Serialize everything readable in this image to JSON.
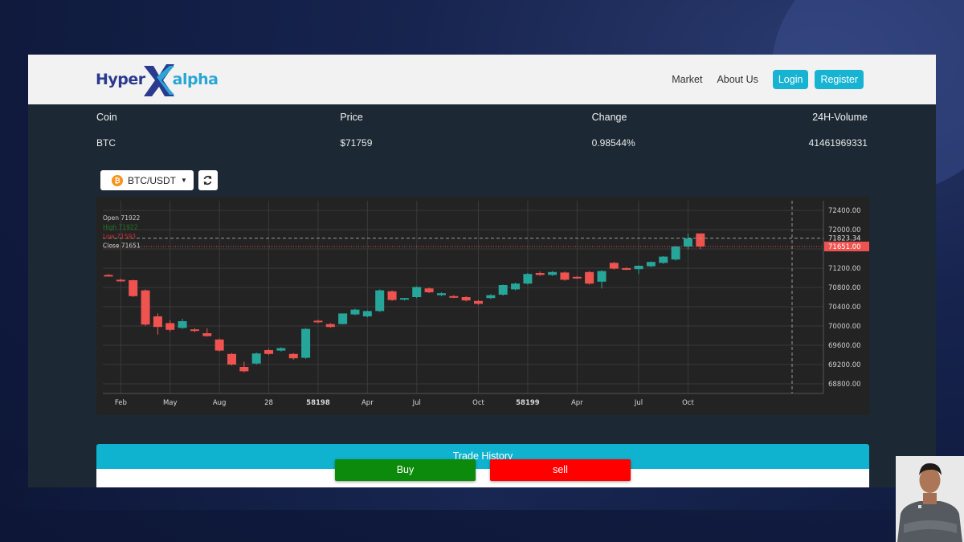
{
  "brand": {
    "logo_left": "Hyper",
    "logo_right": "alpha"
  },
  "nav": {
    "market": "Market",
    "about": "About Us",
    "login": "Login",
    "register": "Register"
  },
  "ticker": {
    "headers": {
      "coin": "Coin",
      "price": "Price",
      "change": "Change",
      "volume": "24H-Volume"
    },
    "row": {
      "coin": "BTC",
      "price": "$71759",
      "change": "0.98544%",
      "volume": "41461969331"
    }
  },
  "toolbar": {
    "pair_label": "BTC/USDT",
    "coin_icon": "bitcoin-icon",
    "refresh_icon": "refresh-icon"
  },
  "colors": {
    "up": "#26a69a",
    "down": "#ef5350",
    "accent": "#17b3d2",
    "buy": "#0b8a0b",
    "sell": "#ff0000"
  },
  "chart_data": {
    "type": "candlestick",
    "legend": {
      "open": "Open 71922",
      "high": "High 71922",
      "low": "Low 71593",
      "close": "Close 71651"
    },
    "ylim": [
      68600,
      72600
    ],
    "y_ticks": [
      "72400.00",
      "72000.00",
      "71600.00",
      "71200.00",
      "70800.00",
      "70400.00",
      "70000.00",
      "69600.00",
      "69200.00",
      "68800.00"
    ],
    "price_labels": {
      "crosshair": "71823.34",
      "last": "71651.00"
    },
    "x_ticks": [
      {
        "label": "Feb",
        "i": 1,
        "bold": false
      },
      {
        "label": "May",
        "i": 5,
        "bold": false
      },
      {
        "label": "Aug",
        "i": 9,
        "bold": false
      },
      {
        "label": "28",
        "i": 13,
        "bold": false
      },
      {
        "label": "58198",
        "i": 17,
        "bold": true
      },
      {
        "label": "Apr",
        "i": 21,
        "bold": false
      },
      {
        "label": "Jul",
        "i": 25,
        "bold": false
      },
      {
        "label": "Oct",
        "i": 30,
        "bold": false
      },
      {
        "label": "58199",
        "i": 34,
        "bold": true
      },
      {
        "label": "Apr",
        "i": 38,
        "bold": false
      },
      {
        "label": "Jul",
        "i": 43,
        "bold": false
      },
      {
        "label": "Oct",
        "i": 47,
        "bold": false
      }
    ],
    "candles": [
      {
        "o": 71060,
        "h": 71080,
        "c": 71040,
        "l": 71030
      },
      {
        "o": 70960,
        "h": 70980,
        "c": 70940,
        "l": 70920
      },
      {
        "o": 70950,
        "h": 70960,
        "c": 70620,
        "l": 70600
      },
      {
        "o": 70740,
        "h": 70760,
        "c": 70030,
        "l": 70000
      },
      {
        "o": 70200,
        "h": 70260,
        "c": 69980,
        "l": 69820
      },
      {
        "o": 70060,
        "h": 70120,
        "c": 69920,
        "l": 69880
      },
      {
        "o": 69960,
        "h": 70150,
        "c": 70100,
        "l": 69940
      },
      {
        "o": 69930,
        "h": 69950,
        "c": 69900,
        "l": 69870
      },
      {
        "o": 69850,
        "h": 69950,
        "c": 69790,
        "l": 69780
      },
      {
        "o": 69720,
        "h": 69740,
        "c": 69490,
        "l": 69470
      },
      {
        "o": 69420,
        "h": 69440,
        "c": 69200,
        "l": 69180
      },
      {
        "o": 69150,
        "h": 69260,
        "c": 69060,
        "l": 69040
      },
      {
        "o": 69220,
        "h": 69450,
        "c": 69430,
        "l": 69200
      },
      {
        "o": 69500,
        "h": 69530,
        "c": 69420,
        "l": 69400
      },
      {
        "o": 69490,
        "h": 69560,
        "c": 69540,
        "l": 69470
      },
      {
        "o": 69420,
        "h": 69440,
        "c": 69330,
        "l": 69300
      },
      {
        "o": 69340,
        "h": 69960,
        "c": 69940,
        "l": 69320
      },
      {
        "o": 70110,
        "h": 70130,
        "c": 70080,
        "l": 70060
      },
      {
        "o": 70040,
        "h": 70060,
        "c": 69980,
        "l": 69960
      },
      {
        "o": 70040,
        "h": 70250,
        "c": 70260,
        "l": 70030
      },
      {
        "o": 70240,
        "h": 70360,
        "c": 70340,
        "l": 70220
      },
      {
        "o": 70200,
        "h": 70320,
        "c": 70310,
        "l": 70180
      },
      {
        "o": 70310,
        "h": 70760,
        "c": 70740,
        "l": 70290
      },
      {
        "o": 70720,
        "h": 70740,
        "c": 70540,
        "l": 70520
      },
      {
        "o": 70550,
        "h": 70580,
        "c": 70580,
        "l": 70530
      },
      {
        "o": 70600,
        "h": 70820,
        "c": 70810,
        "l": 70580
      },
      {
        "o": 70780,
        "h": 70800,
        "c": 70700,
        "l": 70680
      },
      {
        "o": 70640,
        "h": 70700,
        "c": 70680,
        "l": 70620
      },
      {
        "o": 70620,
        "h": 70640,
        "c": 70600,
        "l": 70580
      },
      {
        "o": 70600,
        "h": 70620,
        "c": 70530,
        "l": 70510
      },
      {
        "o": 70520,
        "h": 70540,
        "c": 70460,
        "l": 70440
      },
      {
        "o": 70580,
        "h": 70660,
        "c": 70640,
        "l": 70560
      },
      {
        "o": 70650,
        "h": 70860,
        "c": 70850,
        "l": 70630
      },
      {
        "o": 70760,
        "h": 70900,
        "c": 70880,
        "l": 70740
      },
      {
        "o": 70880,
        "h": 71100,
        "c": 71080,
        "l": 70860
      },
      {
        "o": 71100,
        "h": 71130,
        "c": 71060,
        "l": 71040
      },
      {
        "o": 71060,
        "h": 71140,
        "c": 71120,
        "l": 71040
      },
      {
        "o": 71110,
        "h": 71130,
        "c": 70960,
        "l": 70940
      },
      {
        "o": 71020,
        "h": 71040,
        "c": 71000,
        "l": 70980
      },
      {
        "o": 71120,
        "h": 71140,
        "c": 70880,
        "l": 70860
      },
      {
        "o": 70920,
        "h": 71160,
        "c": 71140,
        "l": 70780
      },
      {
        "o": 71310,
        "h": 71330,
        "c": 71190,
        "l": 71170
      },
      {
        "o": 71200,
        "h": 71220,
        "c": 71180,
        "l": 71160
      },
      {
        "o": 71180,
        "h": 71260,
        "c": 71250,
        "l": 71080
      },
      {
        "o": 71240,
        "h": 71340,
        "c": 71330,
        "l": 71220
      },
      {
        "o": 71310,
        "h": 71450,
        "c": 71440,
        "l": 71290
      },
      {
        "o": 71380,
        "h": 71660,
        "c": 71650,
        "l": 71360
      },
      {
        "o": 71650,
        "h": 71922,
        "c": 71820,
        "l": 71593
      },
      {
        "o": 71922,
        "h": 71922,
        "c": 71651,
        "l": 71593
      }
    ]
  },
  "trade": {
    "history_label": "Trade History",
    "buy_label": "Buy",
    "sell_label": "sell"
  }
}
